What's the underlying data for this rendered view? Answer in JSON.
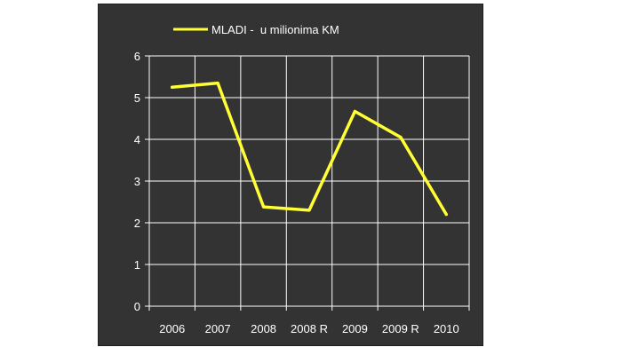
{
  "chart_data": {
    "type": "line",
    "categories": [
      "2006",
      "2007",
      "2008",
      "2008 R",
      "2009",
      "2009 R",
      "2010"
    ],
    "series": [
      {
        "name": "MLADI -  u milionima KM",
        "values": [
          5.25,
          5.35,
          2.38,
          2.3,
          4.67,
          4.05,
          2.2
        ],
        "color": "#ffff33"
      }
    ],
    "yticks": [
      0,
      1,
      2,
      3,
      4,
      5,
      6
    ],
    "ylim": [
      0,
      6
    ],
    "grid": true,
    "legend_position": "top-left",
    "colors": {
      "panel_background": "#333333",
      "gridline": "#ffffff",
      "axis": "#ffffff",
      "text": "#ffffff",
      "line": "#ffff33"
    }
  }
}
